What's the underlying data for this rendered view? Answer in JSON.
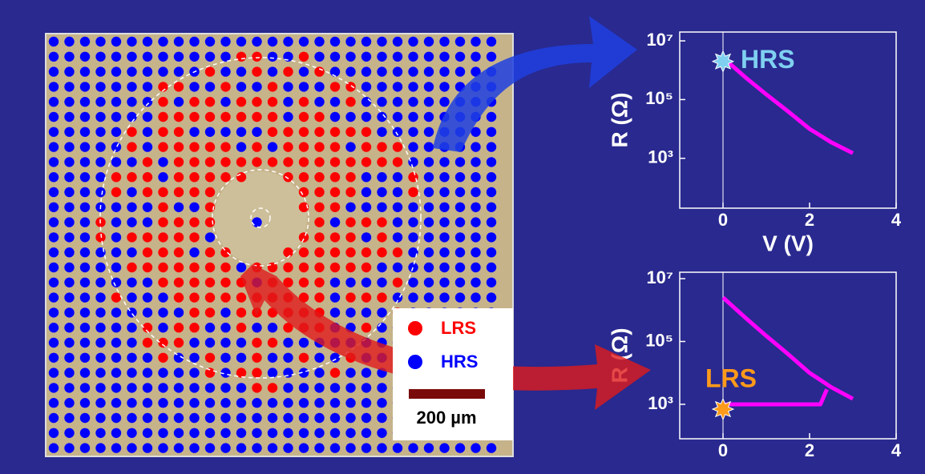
{
  "chart_data": [
    {
      "type": "line",
      "xlabel": "V (V)",
      "ylabel": "R (Ω)",
      "xlim": [
        -1,
        4
      ],
      "xticks": [
        0,
        2,
        4
      ],
      "ylim": [
        20,
        20000000
      ],
      "log_y": true,
      "yticks": [
        {
          "value": 1000,
          "label": "10³"
        },
        {
          "value": 100000,
          "label": "10⁵"
        },
        {
          "value": 10000000,
          "label": "10⁷"
        }
      ],
      "annotation": {
        "text": "HRS",
        "x": 0,
        "y": 2000000,
        "color": "#7fd0f0"
      },
      "series": [
        {
          "color": "#ff00ff",
          "x": [
            0.1,
            0.5,
            1,
            1.5,
            2,
            2.5,
            3
          ],
          "values": [
            2000000,
            600000,
            150000,
            40000,
            10000,
            3500,
            1500
          ]
        }
      ]
    },
    {
      "type": "line",
      "ylabel": "R (Ω)",
      "xlim": [
        -1,
        4
      ],
      "xticks": [
        0,
        2,
        4
      ],
      "ylim": [
        80,
        16000000
      ],
      "log_y": true,
      "yticks": [
        {
          "value": 1000,
          "label": "10³"
        },
        {
          "value": 100000,
          "label": "10⁵"
        },
        {
          "value": 10000000,
          "label": "10⁷"
        }
      ],
      "annotation": {
        "text": "LRS",
        "x": 0,
        "y": 700,
        "color": "#ff9a1a"
      },
      "series": [
        {
          "color": "#ff00ff",
          "x": [
            0,
            0.5,
            1,
            1.5,
            2,
            2.5,
            3
          ],
          "values": [
            2500000,
            600000,
            150000,
            40000,
            10000,
            3500,
            1500
          ]
        },
        {
          "color": "#ff00ff",
          "x": [
            0.05,
            2.25,
            2.4
          ],
          "values": [
            1000,
            1000,
            3000
          ]
        }
      ]
    }
  ],
  "micrograph": {
    "legend": [
      {
        "label": "LRS",
        "color": "#ff0000"
      },
      {
        "label": "HRS",
        "color": "#0000ff"
      }
    ],
    "scale_bar": "200 µm"
  }
}
